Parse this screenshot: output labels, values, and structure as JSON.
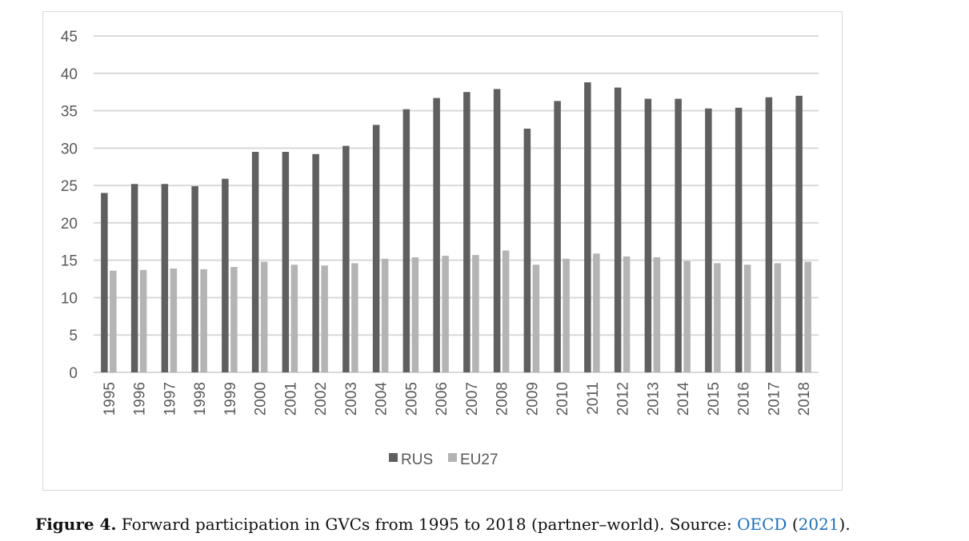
{
  "chart_data": {
    "type": "bar",
    "title": "",
    "xlabel": "",
    "ylabel": "",
    "ylim": [
      0,
      45
    ],
    "yticks": [
      0,
      5,
      10,
      15,
      20,
      25,
      30,
      35,
      40,
      45
    ],
    "grid": true,
    "legend": "bottom",
    "categories": [
      "1995",
      "1996",
      "1997",
      "1998",
      "1999",
      "2000",
      "2001",
      "2002",
      "2003",
      "2004",
      "2005",
      "2006",
      "2007",
      "2008",
      "2009",
      "2010",
      "2011",
      "2012",
      "2013",
      "2014",
      "2015",
      "2016",
      "2017",
      "2018"
    ],
    "series": [
      {
        "name": "RUS",
        "color": "#5f5f5f",
        "values": [
          24.0,
          25.2,
          25.2,
          24.9,
          25.9,
          29.5,
          29.5,
          29.2,
          30.3,
          33.1,
          35.2,
          36.7,
          37.5,
          37.9,
          32.6,
          36.3,
          38.8,
          38.1,
          36.6,
          36.6,
          35.3,
          35.4,
          36.8,
          37.0
        ]
      },
      {
        "name": "EU27",
        "color": "#b4b4b4",
        "values": [
          13.6,
          13.7,
          13.9,
          13.8,
          14.1,
          14.8,
          14.4,
          14.3,
          14.6,
          15.2,
          15.4,
          15.6,
          15.7,
          16.3,
          14.4,
          15.2,
          15.9,
          15.5,
          15.4,
          14.9,
          14.6,
          14.4,
          14.6,
          14.8
        ]
      }
    ]
  },
  "caption": {
    "label": "Figure 4.",
    "text": " Forward participation in GVCs from 1995 to 2018 (partner–world). Source: ",
    "source_link": "OECD",
    "open": " (",
    "year_link": "2021",
    "close": ")."
  }
}
